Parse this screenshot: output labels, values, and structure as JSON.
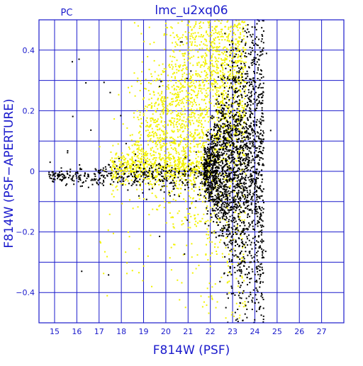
{
  "chart_data": {
    "type": "scatter",
    "title": "lmc_u2xq06",
    "corner_label": "PC",
    "xlabel": "F814W (PSF)",
    "ylabel": "F814W (PSF−APERTURE)",
    "xlim": [
      14.3,
      28.0
    ],
    "ylim": [
      -0.5,
      0.5
    ],
    "x_ticks": [
      15,
      16,
      17,
      18,
      19,
      20,
      21,
      22,
      23,
      24,
      25,
      26,
      27
    ],
    "y_ticks": [
      -0.4,
      -0.2,
      0,
      0.2,
      0.4
    ],
    "y_tick_labels": [
      "−0.4",
      "−0.2",
      "0",
      "0.2",
      "0.4"
    ],
    "grid": true,
    "grid_x": [
      15,
      16,
      17,
      18,
      19,
      20,
      21,
      22,
      23,
      24,
      25,
      26,
      27
    ],
    "grid_y": [
      -0.4,
      -0.3,
      -0.2,
      -0.1,
      0,
      0.1,
      0.2,
      0.3,
      0.4
    ],
    "colors": {
      "axis": "#1a1acc",
      "grid": "#1a1acc",
      "yellow_points": "#f2f200",
      "black_points": "#000000"
    },
    "series": [
      {
        "color": "#f2f200",
        "values_sample": [
          [
            19.8,
            0.32
          ],
          [
            20.5,
            0.45
          ],
          [
            21.0,
            0.4
          ],
          [
            21.3,
            0.48
          ],
          [
            21.7,
            0.42
          ],
          [
            22.0,
            0.35
          ],
          [
            22.2,
            0.47
          ],
          [
            22.5,
            0.3
          ],
          [
            22.8,
            0.44
          ],
          [
            23.1,
            0.38
          ],
          [
            21.4,
            0.25
          ],
          [
            21.9,
            0.18
          ],
          [
            22.3,
            0.22
          ],
          [
            22.6,
            0.15
          ],
          [
            21.1,
            0.12
          ],
          [
            20.7,
            0.1
          ],
          [
            21.6,
            0.08
          ],
          [
            22.1,
            0.05
          ],
          [
            19.5,
            0.03
          ],
          [
            18.8,
            0.01
          ],
          [
            20.2,
            0.02
          ],
          [
            21.8,
            -0.02
          ],
          [
            22.4,
            -0.05
          ],
          [
            22.0,
            -0.12
          ],
          [
            22.2,
            -0.25
          ],
          [
            22.5,
            -0.35
          ],
          [
            21.5,
            -0.08
          ],
          [
            19.2,
            -0.28
          ],
          [
            20.5,
            0.28
          ],
          [
            23.4,
            0.2
          ]
        ]
      },
      {
        "color": "#000000",
        "values_sample": [
          [
            14.8,
            0.03
          ],
          [
            15.5,
            -0.02
          ],
          [
            16.5,
            -0.01
          ],
          [
            17.2,
            -0.03
          ],
          [
            18.0,
            -0.02
          ],
          [
            18.7,
            0.0
          ],
          [
            19.4,
            -0.01
          ],
          [
            20.0,
            0.0
          ],
          [
            20.8,
            -0.01
          ],
          [
            21.5,
            0.0
          ],
          [
            22.5,
            0.35
          ],
          [
            23.0,
            0.42
          ],
          [
            23.5,
            0.3
          ],
          [
            23.8,
            0.45
          ],
          [
            24.0,
            0.2
          ],
          [
            22.8,
            0.1
          ],
          [
            23.3,
            0.05
          ],
          [
            23.6,
            -0.1
          ],
          [
            24.1,
            -0.05
          ],
          [
            23.0,
            -0.2
          ],
          [
            23.4,
            -0.3
          ],
          [
            23.8,
            -0.4
          ],
          [
            24.2,
            -0.25
          ],
          [
            22.7,
            -0.45
          ],
          [
            24.3,
            0.1
          ],
          [
            16.1,
            0.37
          ],
          [
            17.5,
            0.26
          ],
          [
            23.2,
            0.0
          ],
          [
            24.4,
            0.02
          ],
          [
            22.9,
            -0.12
          ]
        ]
      }
    ]
  }
}
